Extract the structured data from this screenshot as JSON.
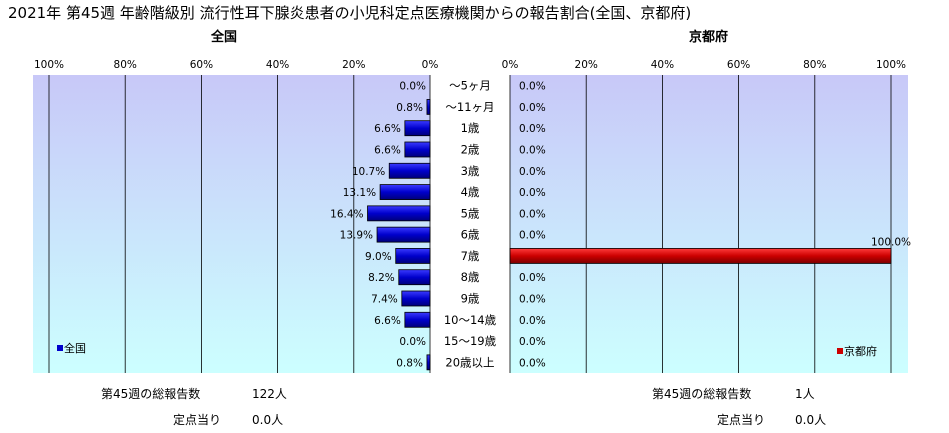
{
  "title": "2021年 第45週 年齢階級別 流行性耳下腺炎患者の小児科定点医療機関からの報告割合(全国、京都府)",
  "chart_data": [
    {
      "type": "bar",
      "orientation": "horizontal",
      "direction": "right-to-left",
      "title": "全国",
      "xlim": [
        0,
        100
      ],
      "tick_labels": [
        "100%",
        "80%",
        "60%",
        "40%",
        "20%",
        "0%"
      ],
      "categories": [
        "～5ヶ月",
        "～11ヶ月",
        "1歳",
        "2歳",
        "3歳",
        "4歳",
        "5歳",
        "6歳",
        "7歳",
        "8歳",
        "9歳",
        "10～14歳",
        "15～19歳",
        "20歳以上"
      ],
      "series": [
        {
          "name": "全国",
          "color": "#0000cc",
          "values": [
            0.0,
            0.8,
            6.6,
            6.6,
            10.7,
            13.1,
            16.4,
            13.9,
            9.0,
            8.2,
            7.4,
            6.6,
            0.0,
            0.8
          ],
          "labels": [
            "0.0%",
            "0.8%",
            "6.6%",
            "6.6%",
            "10.7%",
            "13.1%",
            "16.4%",
            "13.9%",
            "9.0%",
            "8.2%",
            "7.4%",
            "6.6%",
            "0.0%",
            "0.8%"
          ]
        }
      ],
      "legend_position": "bottom-left",
      "grid": true
    },
    {
      "type": "bar",
      "orientation": "horizontal",
      "direction": "left-to-right",
      "title": "京都府",
      "xlim": [
        0,
        100
      ],
      "tick_labels": [
        "0%",
        "20%",
        "40%",
        "60%",
        "80%",
        "100%"
      ],
      "categories": [
        "～5ヶ月",
        "～11ヶ月",
        "1歳",
        "2歳",
        "3歳",
        "4歳",
        "5歳",
        "6歳",
        "7歳",
        "8歳",
        "9歳",
        "10～14歳",
        "15～19歳",
        "20歳以上"
      ],
      "series": [
        {
          "name": "京都府",
          "color": "#cc0000",
          "values": [
            0.0,
            0.0,
            0.0,
            0.0,
            0.0,
            0.0,
            0.0,
            0.0,
            100.0,
            0.0,
            0.0,
            0.0,
            0.0,
            0.0
          ],
          "labels": [
            "0.0%",
            "0.0%",
            "0.0%",
            "0.0%",
            "0.0%",
            "0.0%",
            "0.0%",
            "0.0%",
            "100.0%",
            "0.0%",
            "0.0%",
            "0.0%",
            "0.0%",
            "0.0%"
          ]
        }
      ],
      "legend_position": "bottom-right",
      "grid": true
    }
  ],
  "footer": {
    "left": {
      "total_label": "第45週の総報告数",
      "total_value": "122人",
      "per_label": "定点当り",
      "per_value": "0.0人"
    },
    "right": {
      "total_label": "第45週の総報告数",
      "total_value": "1人",
      "per_label": "定点当り",
      "per_value": "0.0人"
    }
  },
  "colors": {
    "plot_top": "#c8c8f8",
    "plot_bottom": "#ccffff",
    "national_bar": "#0000cc",
    "kyoto_bar": "#cc0000"
  }
}
